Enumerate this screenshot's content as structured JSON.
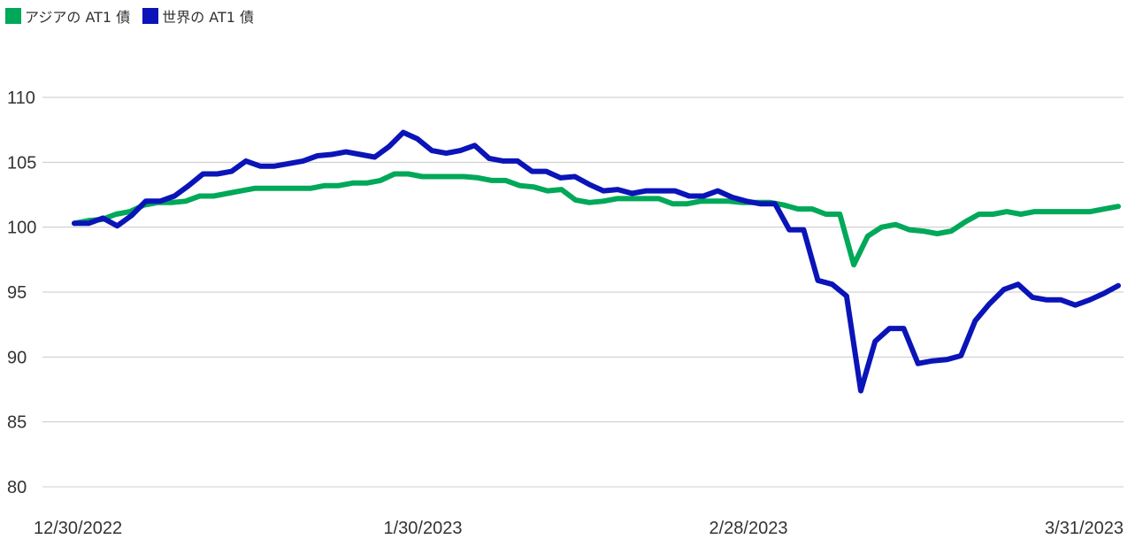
{
  "chart_data": {
    "type": "line",
    "legend_position": "top-left",
    "grid": true,
    "ylim": [
      80,
      110
    ],
    "yticks": [
      80,
      85,
      90,
      95,
      100,
      105,
      110
    ],
    "xtick_labels": [
      "12/30/2022",
      "1/30/2023",
      "2/28/2023",
      "3/31/2023"
    ],
    "series": [
      {
        "name": "アジアの AT1 債",
        "color": "#00a859",
        "values": [
          100.3,
          100.5,
          100.6,
          101.0,
          101.2,
          101.7,
          101.9,
          101.9,
          102.0,
          102.4,
          102.4,
          102.6,
          102.8,
          103.0,
          103.0,
          103.0,
          103.0,
          103.0,
          103.2,
          103.2,
          103.4,
          103.4,
          103.6,
          104.1,
          104.1,
          103.9,
          103.9,
          103.9,
          103.9,
          103.8,
          103.6,
          103.6,
          103.2,
          103.1,
          102.8,
          102.9,
          102.1,
          101.9,
          102.0,
          102.2,
          102.2,
          102.2,
          102.2,
          101.8,
          101.8,
          102.0,
          102.0,
          102.0,
          101.9,
          101.9,
          101.9,
          101.7,
          101.4,
          101.4,
          101.0,
          101.0,
          97.1,
          99.3,
          100.0,
          100.2,
          99.8,
          99.7,
          99.5,
          99.7,
          100.4,
          101.0,
          101.0,
          101.2,
          101.0,
          101.2,
          101.2,
          101.2,
          101.2,
          101.2,
          101.4,
          101.6
        ]
      },
      {
        "name": "世界の AT1 債",
        "color": "#0a14b8",
        "values": [
          100.3,
          100.3,
          100.7,
          100.1,
          100.9,
          102.0,
          102.0,
          102.4,
          103.2,
          104.1,
          104.1,
          104.3,
          105.1,
          104.7,
          104.7,
          104.9,
          105.1,
          105.5,
          105.6,
          105.8,
          105.6,
          105.4,
          106.2,
          107.3,
          106.8,
          105.9,
          105.7,
          105.9,
          106.3,
          105.3,
          105.1,
          105.1,
          104.3,
          104.3,
          103.8,
          103.9,
          103.3,
          102.8,
          102.9,
          102.6,
          102.8,
          102.8,
          102.8,
          102.4,
          102.4,
          102.8,
          102.3,
          102.0,
          101.8,
          101.8,
          99.8,
          99.8,
          95.9,
          95.6,
          94.7,
          87.4,
          91.2,
          92.2,
          92.2,
          89.5,
          89.7,
          89.8,
          90.1,
          92.8,
          94.1,
          95.2,
          95.6,
          94.6,
          94.4,
          94.4,
          94.0,
          94.4,
          94.9,
          95.5
        ]
      }
    ]
  }
}
